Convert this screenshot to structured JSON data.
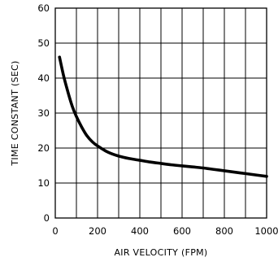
{
  "chart_data": {
    "type": "line",
    "title": "",
    "xlabel": "AIR VELOCITY (FPM)",
    "ylabel": "TIME CONSTANT (SEC)",
    "xlim": [
      0,
      1000
    ],
    "ylim": [
      0,
      60
    ],
    "xticks": [
      0,
      200,
      400,
      600,
      800,
      1000
    ],
    "yticks": [
      0,
      10,
      20,
      30,
      40,
      50,
      60
    ],
    "grid": {
      "x_major_step": 100,
      "y_major_step": 10,
      "on": true
    },
    "legend": "none",
    "series": [
      {
        "x": [
          20,
          40,
          60,
          80,
          100,
          125,
          150,
          175,
          200,
          250,
          300,
          350,
          400,
          450,
          500,
          550,
          600,
          650,
          700,
          750,
          800,
          850,
          900,
          950,
          1000
        ],
        "y": [
          46,
          40.5,
          36,
          32,
          29,
          26,
          23.5,
          21.8,
          20.6,
          18.8,
          17.7,
          17,
          16.5,
          16,
          15.6,
          15.2,
          14.9,
          14.6,
          14.3,
          13.9,
          13.5,
          13.1,
          12.7,
          12.3,
          11.9
        ]
      }
    ],
    "color": "#000000"
  }
}
